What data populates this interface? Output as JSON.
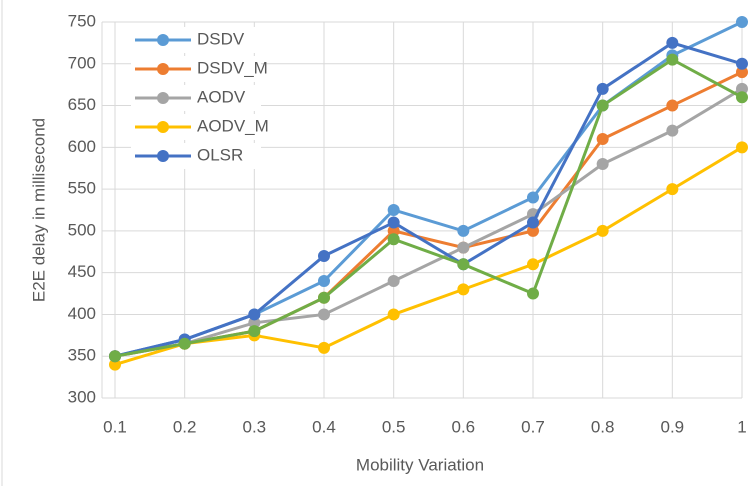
{
  "chart_data": {
    "type": "line",
    "x": [
      0.1,
      0.2,
      0.3,
      0.4,
      0.5,
      0.6,
      0.7,
      0.8,
      0.9,
      1
    ],
    "series": [
      {
        "name": "DSDV",
        "color": "#5b9bd5",
        "values": [
          350,
          370,
          400,
          440,
          525,
          500,
          540,
          650,
          710,
          750
        ]
      },
      {
        "name": "DSDV_M",
        "color": "#ed7d31",
        "values": [
          350,
          365,
          380,
          420,
          500,
          480,
          500,
          610,
          650,
          690
        ]
      },
      {
        "name": "AODV",
        "color": "#a5a5a5",
        "values": [
          350,
          365,
          390,
          400,
          440,
          480,
          520,
          580,
          620,
          670
        ]
      },
      {
        "name": "AODV_M",
        "color": "#ffc000",
        "values": [
          340,
          365,
          375,
          360,
          400,
          430,
          460,
          500,
          550,
          600
        ]
      },
      {
        "name": "OLSR",
        "color": "#4472c4",
        "values": [
          350,
          370,
          400,
          470,
          510,
          460,
          510,
          670,
          725,
          700
        ]
      },
      {
        "color": "#70ad47",
        "values": [
          350,
          365,
          380,
          420,
          490,
          460,
          425,
          650,
          705,
          660
        ]
      }
    ],
    "x_label": "Mobility Variation",
    "y_label": "E2E  delay in millisecond",
    "xlim": [
      0.1,
      1
    ],
    "xticks": [
      0.1,
      0.2,
      0.3,
      0.4,
      0.5,
      0.6,
      0.7,
      0.8,
      0.9,
      1
    ],
    "ylim": [
      300,
      750
    ],
    "yticks": [
      300,
      350,
      400,
      450,
      500,
      550,
      600,
      650,
      700,
      750
    ],
    "grid": true,
    "legend": "upper left"
  }
}
